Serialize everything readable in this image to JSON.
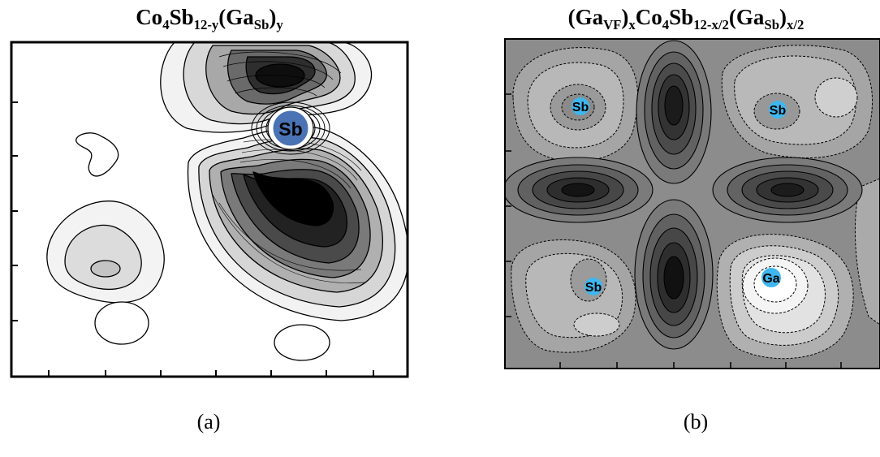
{
  "panel_a": {
    "title_base1": "Co",
    "title_sub1": "4",
    "title_base2": "Sb",
    "title_sub2": "12-y",
    "title_base3": "(Ga",
    "title_sub3": "Sb",
    "title_base4": ")",
    "title_sub4": "y",
    "caption": "(a)",
    "atoms": [
      {
        "label": "Sb",
        "color": "#4a73b5"
      }
    ]
  },
  "panel_b": {
    "title_base1": "(Ga",
    "title_sub1": "VF",
    "title_base2": ")",
    "title_sub2": "x",
    "title_base3": "Co",
    "title_sub3": "4",
    "title_base4": "Sb",
    "title_sub4": "12-x/2",
    "title_base5": "(Ga",
    "title_sub5": "Sb",
    "title_base6": ")",
    "title_sub6": "x/2",
    "caption": "(b)",
    "atoms": [
      {
        "label": "Sb",
        "color": "#3fb6ee"
      },
      {
        "label": "Sb",
        "color": "#3fb6ee"
      },
      {
        "label": "Sb",
        "color": "#3fb6ee"
      },
      {
        "label": "Ga",
        "color": "#3fb6ee"
      }
    ]
  },
  "colors": {
    "frame": "#000000",
    "background_b": "#8a8a8a",
    "atom_border": "#ffffff"
  }
}
